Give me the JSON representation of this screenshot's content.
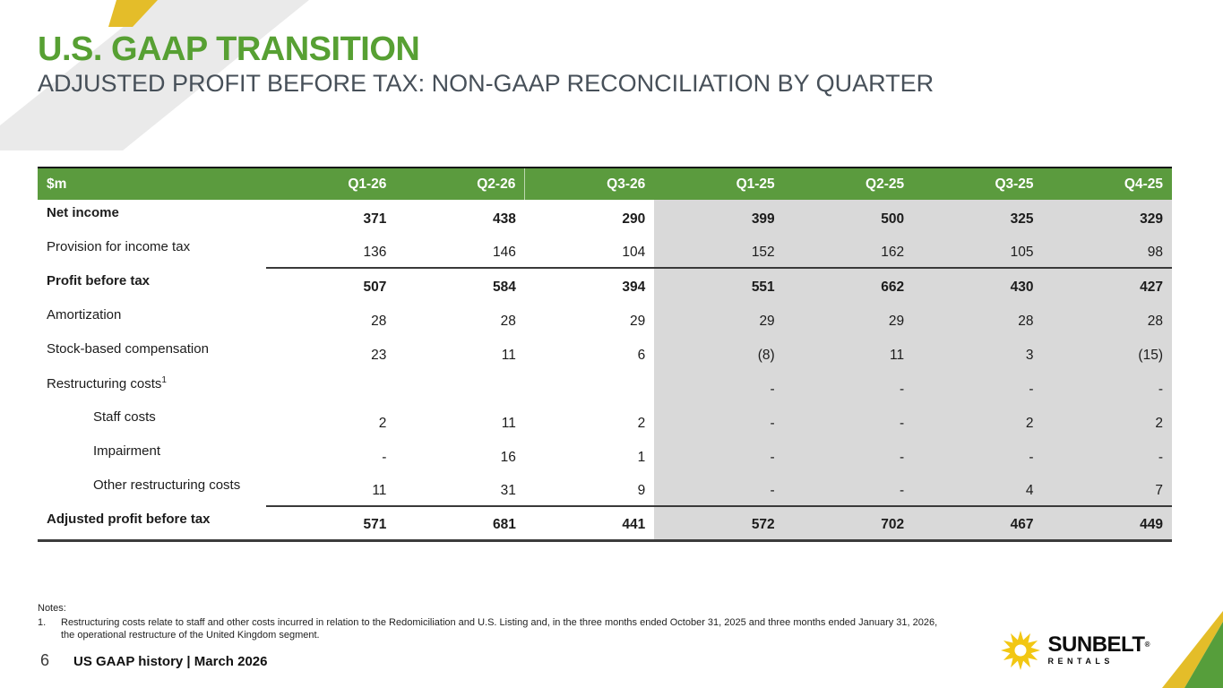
{
  "slide": {
    "title": "U.S. GAAP TRANSITION",
    "subtitle": "ADJUSTED PROFIT BEFORE TAX: NON-GAAP RECONCILIATION BY QUARTER",
    "page_number": "6",
    "footer": "US GAAP history | March 2026"
  },
  "colors": {
    "title_green": "#57a033",
    "header_green": "#5b9b3e",
    "corner_green": "#569e3b",
    "accent_yellow": "#e4bd29",
    "table_shade_gray": "#d9d9d9",
    "decor_gray": "#eaeaea",
    "subtitle_gray": "#475059"
  },
  "table": {
    "unit_label": "$m",
    "columns": [
      "Q1-26",
      "Q2-26",
      "Q3-26",
      "Q1-25",
      "Q2-25",
      "Q3-25",
      "Q4-25"
    ],
    "header_separator_before": 2,
    "shaded_from": 3,
    "rows": [
      {
        "label": "Net income",
        "bold": true,
        "topline": false,
        "indent": false,
        "values": [
          "371",
          "438",
          "290",
          "399",
          "500",
          "325",
          "329"
        ]
      },
      {
        "label": "Provision for income tax",
        "bold": false,
        "topline": false,
        "indent": false,
        "values": [
          "136",
          "146",
          "104",
          "152",
          "162",
          "105",
          "98"
        ]
      },
      {
        "label": "Profit before tax",
        "bold": true,
        "topline": true,
        "indent": false,
        "values": [
          "507",
          "584",
          "394",
          "551",
          "662",
          "430",
          "427"
        ]
      },
      {
        "label": "Amortization",
        "bold": false,
        "topline": false,
        "indent": false,
        "values": [
          "28",
          "28",
          "29",
          "29",
          "29",
          "28",
          "28"
        ]
      },
      {
        "label": "Stock-based compensation",
        "bold": false,
        "topline": false,
        "indent": false,
        "values": [
          "23",
          "11",
          "6",
          "(8)",
          "11",
          "3",
          "(15)"
        ]
      },
      {
        "label": "Restructuring costs",
        "sup": "1",
        "bold": false,
        "topline": false,
        "indent": false,
        "values": [
          "",
          "",
          "",
          "-",
          "-",
          "-",
          "-"
        ]
      },
      {
        "label": "Staff costs",
        "bold": false,
        "topline": false,
        "indent": true,
        "values": [
          "2",
          "11",
          "2",
          "-",
          "-",
          "2",
          "2"
        ]
      },
      {
        "label": "Impairment",
        "bold": false,
        "topline": false,
        "indent": true,
        "values": [
          "-",
          "16",
          "1",
          "-",
          "-",
          "-",
          "-"
        ]
      },
      {
        "label": "Other restructuring costs",
        "bold": false,
        "topline": false,
        "indent": true,
        "values": [
          "11",
          "31",
          "9",
          "-",
          "-",
          "4",
          "7"
        ]
      },
      {
        "label": "Adjusted profit before tax",
        "bold": true,
        "topline": true,
        "indent": false,
        "values": [
          "571",
          "681",
          "441",
          "572",
          "702",
          "467",
          "449"
        ]
      }
    ]
  },
  "notes": {
    "heading": "Notes:",
    "items": [
      {
        "num": "1.",
        "text": "Restructuring costs relate to staff and other costs incurred in relation to the Redomiciliation and U.S. Listing and, in the three months ended October 31, 2025 and three months ended January 31, 2026, the operational restructure of the United Kingdom segment."
      }
    ]
  },
  "logo": {
    "word": "SUNBELT",
    "registered": "®",
    "sub": "RENTALS"
  }
}
